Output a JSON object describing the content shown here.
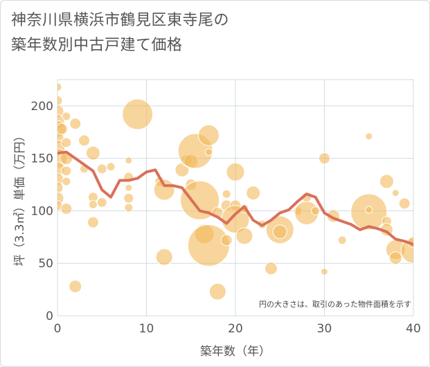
{
  "title_lines": [
    "神奈川県横浜市鶴見区東寺尾の",
    "築年数別中古戸建て価格"
  ],
  "chart_data": {
    "type": "scatter",
    "xlabel": "築年数（年）",
    "ylabel": "坪（3.3㎡）単価（万円）",
    "xlim": [
      0,
      40
    ],
    "ylim": [
      0,
      225
    ],
    "xticks": [
      0,
      10,
      20,
      30,
      40
    ],
    "yticks": [
      0,
      50,
      100,
      150,
      200
    ],
    "grid": true,
    "note": "円の大きさは、取引のあった物件面積を示す",
    "colors": {
      "bubble": "#f2b95a",
      "line": "#d9705a",
      "grid": "#cfdbe3"
    },
    "bubbles": [
      {
        "x": 0,
        "y": 218,
        "s": 6
      },
      {
        "x": 0,
        "y": 205,
        "s": 7
      },
      {
        "x": 0,
        "y": 195,
        "s": 9
      },
      {
        "x": 0,
        "y": 185,
        "s": 10
      },
      {
        "x": 0,
        "y": 178,
        "s": 12
      },
      {
        "x": 0,
        "y": 170,
        "s": 9
      },
      {
        "x": 0,
        "y": 160,
        "s": 11
      },
      {
        "x": 0,
        "y": 150,
        "s": 14
      },
      {
        "x": 0,
        "y": 140,
        "s": 10
      },
      {
        "x": 0,
        "y": 130,
        "s": 9
      },
      {
        "x": 0,
        "y": 122,
        "s": 8
      },
      {
        "x": 0,
        "y": 112,
        "s": 9
      },
      {
        "x": 0,
        "y": 105,
        "s": 7
      },
      {
        "x": 0.5,
        "y": 178,
        "s": 8
      },
      {
        "x": 1,
        "y": 190,
        "s": 6
      },
      {
        "x": 1,
        "y": 165,
        "s": 7
      },
      {
        "x": 1,
        "y": 150,
        "s": 9
      },
      {
        "x": 1,
        "y": 138,
        "s": 7
      },
      {
        "x": 1,
        "y": 128,
        "s": 6
      },
      {
        "x": 1,
        "y": 102,
        "s": 8
      },
      {
        "x": 2,
        "y": 183,
        "s": 8
      },
      {
        "x": 2,
        "y": 28,
        "s": 9
      },
      {
        "x": 3,
        "y": 167,
        "s": 8
      },
      {
        "x": 3,
        "y": 140,
        "s": 6
      },
      {
        "x": 4,
        "y": 155,
        "s": 10
      },
      {
        "x": 4,
        "y": 113,
        "s": 7
      },
      {
        "x": 4,
        "y": 106,
        "s": 6
      },
      {
        "x": 4,
        "y": 89,
        "s": 8
      },
      {
        "x": 5,
        "y": 140,
        "s": 7
      },
      {
        "x": 5,
        "y": 108,
        "s": 7
      },
      {
        "x": 6,
        "y": 142,
        "s": 6
      },
      {
        "x": 8,
        "y": 148,
        "s": 5
      },
      {
        "x": 8,
        "y": 132,
        "s": 7
      },
      {
        "x": 8,
        "y": 122,
        "s": 5
      },
      {
        "x": 8,
        "y": 112,
        "s": 7
      },
      {
        "x": 8,
        "y": 103,
        "s": 6
      },
      {
        "x": 9,
        "y": 192,
        "s": 22
      },
      {
        "x": 11.5,
        "y": 128,
        "s": 7
      },
      {
        "x": 12,
        "y": 120,
        "s": 15
      },
      {
        "x": 12,
        "y": 56,
        "s": 12
      },
      {
        "x": 14,
        "y": 139,
        "s": 10
      },
      {
        "x": 14.5,
        "y": 148,
        "s": 8
      },
      {
        "x": 15,
        "y": 125,
        "s": 8
      },
      {
        "x": 15,
        "y": 147,
        "s": 10
      },
      {
        "x": 15.5,
        "y": 157,
        "s": 25
      },
      {
        "x": 16,
        "y": 110,
        "s": 28
      },
      {
        "x": 16.5,
        "y": 78,
        "s": 14
      },
      {
        "x": 17,
        "y": 67,
        "s": 30
      },
      {
        "x": 17,
        "y": 172,
        "s": 15
      },
      {
        "x": 17,
        "y": 156,
        "s": 5
      },
      {
        "x": 18,
        "y": 98,
        "s": 8
      },
      {
        "x": 18,
        "y": 23,
        "s": 12
      },
      {
        "x": 19,
        "y": 116,
        "s": 6
      },
      {
        "x": 19,
        "y": 105,
        "s": 8
      },
      {
        "x": 19,
        "y": 72,
        "s": 8
      },
      {
        "x": 20,
        "y": 137,
        "s": 13
      },
      {
        "x": 20,
        "y": 105,
        "s": 8
      },
      {
        "x": 20,
        "y": 92,
        "s": 20
      },
      {
        "x": 21,
        "y": 102,
        "s": 6
      },
      {
        "x": 21,
        "y": 76,
        "s": 12
      },
      {
        "x": 22,
        "y": 117,
        "s": 10
      },
      {
        "x": 23,
        "y": 87,
        "s": 6
      },
      {
        "x": 24,
        "y": 45,
        "s": 9
      },
      {
        "x": 25,
        "y": 82,
        "s": 20
      },
      {
        "x": 25,
        "y": 80,
        "s": 10
      },
      {
        "x": 27,
        "y": 100,
        "s": 6
      },
      {
        "x": 28,
        "y": 98,
        "s": 17
      },
      {
        "x": 28,
        "y": 113,
        "s": 7
      },
      {
        "x": 29,
        "y": 100,
        "s": 6
      },
      {
        "x": 30,
        "y": 150,
        "s": 8
      },
      {
        "x": 30,
        "y": 42,
        "s": 5
      },
      {
        "x": 31,
        "y": 95,
        "s": 9
      },
      {
        "x": 32,
        "y": 72,
        "s": 6
      },
      {
        "x": 35,
        "y": 171,
        "s": 5
      },
      {
        "x": 35,
        "y": 99,
        "s": 26
      },
      {
        "x": 35,
        "y": 101,
        "s": 5
      },
      {
        "x": 37,
        "y": 128,
        "s": 10
      },
      {
        "x": 37,
        "y": 90,
        "s": 7
      },
      {
        "x": 37,
        "y": 82,
        "s": 9
      },
      {
        "x": 38,
        "y": 117,
        "s": 5
      },
      {
        "x": 38,
        "y": 63,
        "s": 14
      },
      {
        "x": 38,
        "y": 55,
        "s": 9
      },
      {
        "x": 39,
        "y": 107,
        "s": 8
      },
      {
        "x": 40,
        "y": 62,
        "s": 18
      },
      {
        "x": 40,
        "y": 70,
        "s": 8
      }
    ],
    "trend": {
      "x": [
        0,
        1,
        2,
        3,
        4,
        5,
        6,
        7,
        8,
        9,
        10,
        11,
        12,
        13,
        14,
        15,
        16,
        17,
        18,
        19,
        20,
        21,
        22,
        23,
        24,
        25,
        26,
        27,
        28,
        29,
        30,
        31,
        32,
        33,
        34,
        35,
        36,
        37,
        38,
        39,
        40
      ],
      "y": [
        155,
        156,
        150,
        144,
        138,
        120,
        113,
        129,
        129,
        131,
        137,
        139,
        124,
        124,
        122,
        111,
        100,
        98,
        94,
        88,
        97,
        104,
        91,
        86,
        91,
        98,
        101,
        109,
        116,
        113,
        98,
        93,
        90,
        87,
        82,
        85,
        83,
        80,
        73,
        71,
        68
      ]
    }
  }
}
